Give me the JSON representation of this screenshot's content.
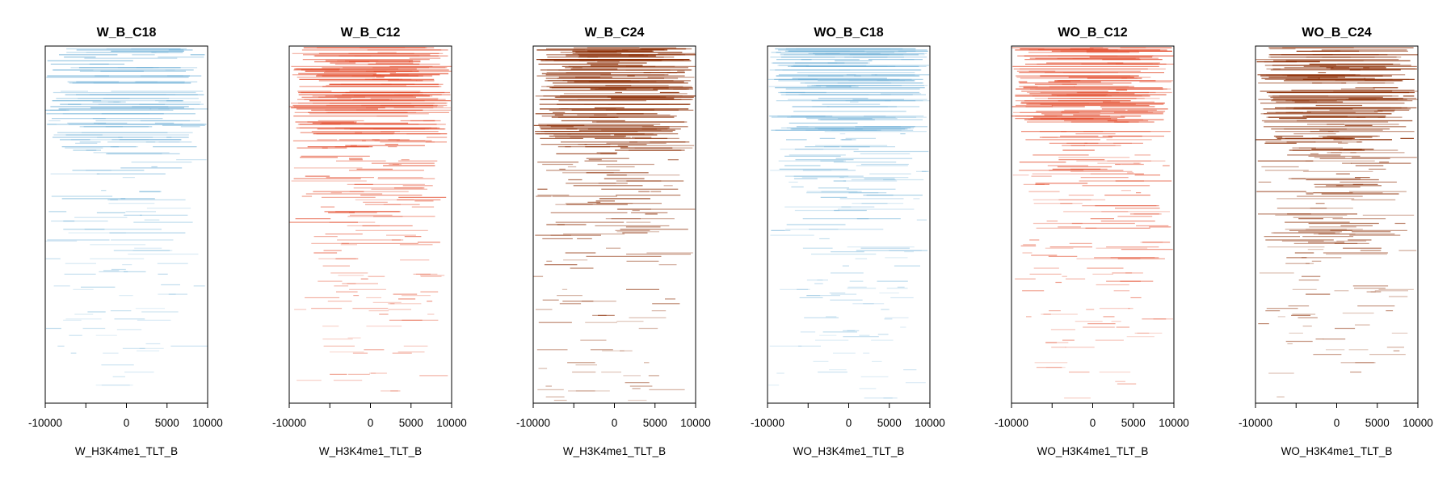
{
  "chart_data": [
    {
      "type": "heatmap",
      "title": "W_B_C18",
      "xlabel": "W_H3K4me1_TLT_B",
      "xlim": [
        -10000,
        10000
      ],
      "xticks": [
        -10000,
        -5000,
        0,
        5000,
        10000
      ],
      "xtick_labels": [
        "-10000",
        "",
        "0",
        "5000",
        "10000"
      ],
      "color": "#6baed6",
      "density": 0.55,
      "intensity": 0.75
    },
    {
      "type": "heatmap",
      "title": "W_B_C12",
      "xlabel": "W_H3K4me1_TLT_B",
      "xlim": [
        -10000,
        10000
      ],
      "xticks": [
        -10000,
        -5000,
        0,
        5000,
        10000
      ],
      "xtick_labels": [
        "-10000",
        "",
        "0",
        "5000",
        "10000"
      ],
      "color": "#e34a2a",
      "density": 0.8,
      "intensity": 0.9
    },
    {
      "type": "heatmap",
      "title": "W_B_C24",
      "xlabel": "W_H3K4me1_TLT_B",
      "xlim": [
        -10000,
        10000
      ],
      "xticks": [
        -10000,
        -5000,
        0,
        5000,
        10000
      ],
      "xtick_labels": [
        "-10000",
        "",
        "0",
        "5000",
        "10000"
      ],
      "color": "#8c2d04",
      "density": 0.9,
      "intensity": 1.0
    },
    {
      "type": "heatmap",
      "title": "WO_B_C18",
      "xlabel": "WO_H3K4me1_TLT_B",
      "xlim": [
        -10000,
        10000
      ],
      "xticks": [
        -10000,
        -5000,
        0,
        5000,
        10000
      ],
      "xtick_labels": [
        "-10000",
        "",
        "0",
        "5000",
        "10000"
      ],
      "color": "#6baed6",
      "density": 0.7,
      "intensity": 0.7
    },
    {
      "type": "heatmap",
      "title": "WO_B_C12",
      "xlabel": "WO_H3K4me1_TLT_B",
      "xlim": [
        -10000,
        10000
      ],
      "xticks": [
        -10000,
        -5000,
        0,
        5000,
        10000
      ],
      "xtick_labels": [
        "-10000",
        "",
        "0",
        "5000",
        "10000"
      ],
      "color": "#e34a2a",
      "density": 0.8,
      "intensity": 0.85
    },
    {
      "type": "heatmap",
      "title": "WO_B_C24",
      "xlabel": "WO_H3K4me1_TLT_B",
      "xlim": [
        -10000,
        10000
      ],
      "xticks": [
        -10000,
        -5000,
        0,
        5000,
        10000
      ],
      "xtick_labels": [
        "-10000",
        "",
        "0",
        "5000",
        "10000"
      ],
      "color": "#8c2d04",
      "density": 0.8,
      "intensity": 0.95
    }
  ]
}
